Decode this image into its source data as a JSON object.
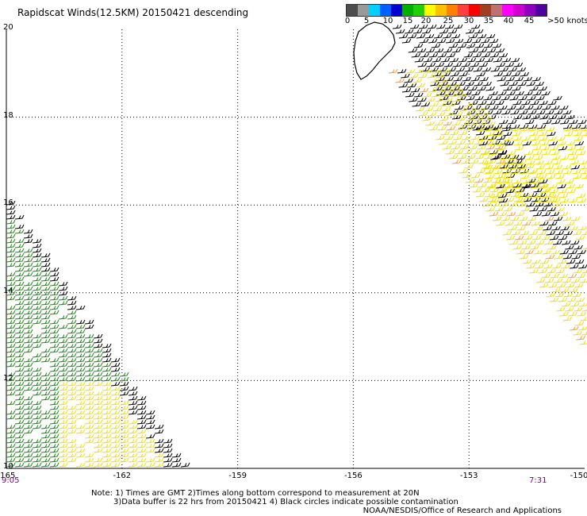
{
  "title": "Rapidscat Winds(12.5KM) 20150421 descending",
  "legend": {
    "colors": [
      "#4d4d4d",
      "#9a9a9a",
      "#00d0ff",
      "#0060ff",
      "#0000d0",
      "#00b000",
      "#20d000",
      "#ffff00",
      "#ffc000",
      "#ff8000",
      "#ff4040",
      "#ff0000",
      "#a04020",
      "#c07070",
      "#ff00ff",
      "#d000d0",
      "#9000c0",
      "#5000a0"
    ],
    "labels": [
      "0",
      "5",
      "10",
      "15",
      "20",
      "25",
      "30",
      "35",
      "40",
      "45",
      ">50 knots"
    ]
  },
  "axes": {
    "lon_ticks": [
      "-165",
      "-162",
      "-159",
      "-156",
      "-153",
      "-150"
    ],
    "lat_ticks": [
      "20",
      "18",
      "16",
      "14",
      "12",
      "10"
    ],
    "lon_range": [
      -165,
      -150
    ],
    "lat_range": [
      10,
      20
    ]
  },
  "times": {
    "left": "9:05",
    "right": "7:31"
  },
  "notes": [
    "Note: 1) Times are GMT 2)Times along bottom correspond to measurement at 20N",
    "3)Data buffer is 22 hrs from 20150421 4) Black circles indicate possible contamination"
  ],
  "credit": "NOAA/NESDIS/Office of Research and Applications",
  "wind_colors": {
    "black": "#000000",
    "green": "#1a8a1a",
    "yellow": "#f0e000",
    "orange": "#ff9a30"
  }
}
